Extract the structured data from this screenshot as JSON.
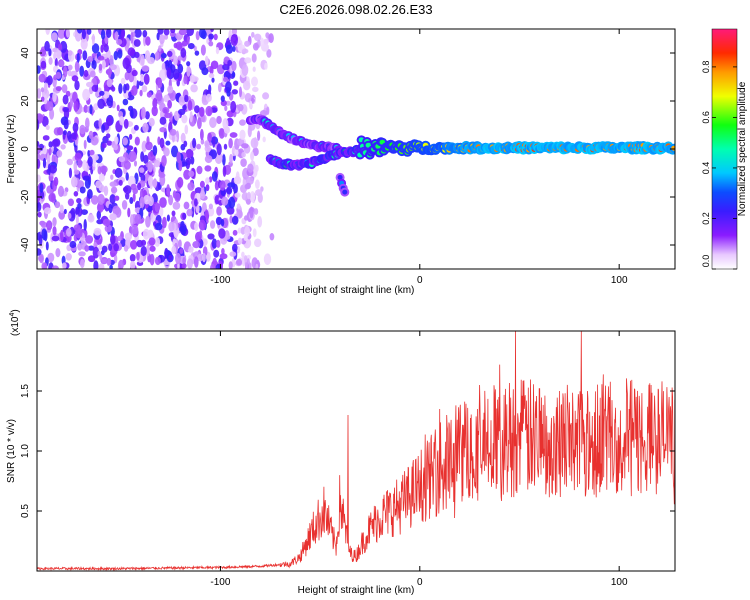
{
  "figure": {
    "title": "C2E6.2026.098.02.26.E33"
  },
  "chart_data": [
    {
      "type": "heatmap",
      "name": "spectrogram",
      "title": "C2E6.2026.098.02.26.E33",
      "xlabel": "Height of straight line (km)",
      "ylabel": "Frequency (Hz)",
      "xlim": [
        -192,
        128
      ],
      "ylim": [
        -50,
        50
      ],
      "x_ticks": [
        -100,
        0,
        100
      ],
      "y_ticks": [
        -40,
        -20,
        0,
        20,
        40
      ],
      "colorbar": {
        "label": "Normalized spectral amplitude",
        "range": [
          0,
          0.95
        ],
        "ticks": [
          0.0,
          0.2,
          0.4,
          0.6,
          0.8
        ],
        "tick_labels": [
          "0.0",
          "0.2",
          "0.4",
          "0.6",
          "0.8"
        ]
      },
      "features": [
        {
          "name": "noise-region",
          "x_range": [
            -192,
            -72
          ],
          "y_range": [
            -50,
            50
          ],
          "amplitude": [
            0.05,
            0.25
          ]
        },
        {
          "name": "echo-upper-branch",
          "points": [
            [
              -85,
              12
            ],
            [
              -80,
              12
            ],
            [
              -75,
              10
            ],
            [
              -68,
              6
            ],
            [
              -60,
              3
            ],
            [
              -50,
              1
            ],
            [
              -40,
              0
            ]
          ],
          "amplitude": 0.35
        },
        {
          "name": "echo-lower-branch",
          "points": [
            [
              -75,
              -4
            ],
            [
              -70,
              -6
            ],
            [
              -62,
              -7
            ],
            [
              -55,
              -6
            ],
            [
              -48,
              -4
            ],
            [
              -42,
              -2
            ],
            [
              -35,
              -1
            ],
            [
              -25,
              0
            ]
          ],
          "amplitude": 0.45
        },
        {
          "name": "echo-drop",
          "points": [
            [
              -40,
              -12
            ],
            [
              -38,
              -17
            ],
            [
              -37,
              -19
            ]
          ],
          "amplitude": 0.3
        },
        {
          "name": "main-echo-line",
          "x_range": [
            -30,
            128
          ],
          "frequency": 0.5,
          "amplitude": [
            0.5,
            0.9
          ]
        }
      ]
    },
    {
      "type": "line",
      "name": "snr",
      "xlabel": "Height of straight line (km)",
      "ylabel": "SNR (10 * v/v)",
      "scale_label": "(x10",
      "scale_exponent": "4",
      "xlim": [
        -192,
        128
      ],
      "ylim": [
        0,
        2.0
      ],
      "x_ticks": [
        -100,
        0,
        100
      ],
      "y_ticks": [
        0.5,
        1.0,
        1.5
      ],
      "y_tick_labels": [
        "0.5",
        "1.0",
        "1.5"
      ],
      "color": "#e8312f",
      "series": [
        {
          "name": "SNR envelope",
          "x": [
            -192,
            -150,
            -100,
            -80,
            -65,
            -60,
            -55,
            -50,
            -48,
            -45,
            -42,
            -40,
            -38,
            -35,
            -32,
            -30,
            -25,
            -20,
            -10,
            0,
            10,
            20,
            30,
            40,
            50,
            60,
            70,
            80,
            90,
            100,
            110,
            120,
            128
          ],
          "values": [
            0.02,
            0.02,
            0.03,
            0.04,
            0.06,
            0.12,
            0.3,
            0.45,
            0.5,
            0.35,
            0.2,
            0.6,
            0.4,
            0.15,
            0.12,
            0.2,
            0.35,
            0.45,
            0.55,
            0.7,
            0.85,
            1.0,
            1.05,
            1.1,
            1.12,
            1.1,
            1.1,
            1.12,
            1.15,
            1.12,
            1.1,
            1.12,
            1.1
          ]
        }
      ],
      "peaks": [
        [
          -36,
          1.3
        ],
        [
          10,
          1.35
        ],
        [
          30,
          1.55
        ],
        [
          40,
          1.72
        ],
        [
          48,
          2.0
        ],
        [
          60,
          1.52
        ],
        [
          70,
          1.5
        ],
        [
          81,
          2.0
        ],
        [
          95,
          1.45
        ],
        [
          105,
          1.35
        ],
        [
          116,
          1.55
        ],
        [
          125,
          1.45
        ]
      ]
    }
  ]
}
